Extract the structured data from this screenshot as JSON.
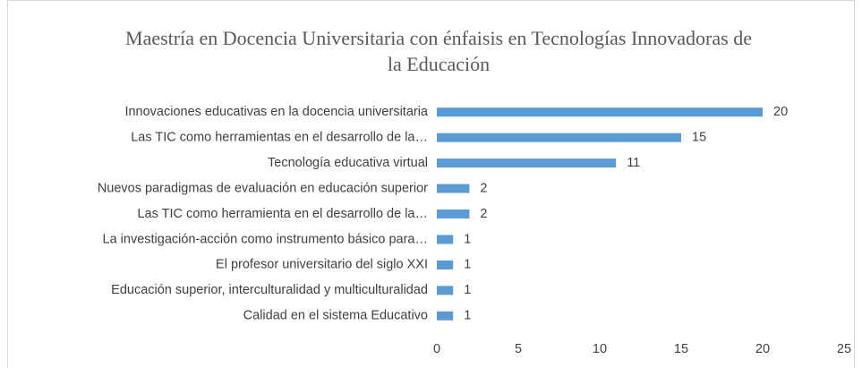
{
  "chart_data": {
    "type": "barh",
    "title": "Maestría en Docencia Universitaria con énfaisis en Tecnologías Innovadoras de la Educación",
    "categories": [
      "Innovaciones educativas en la docencia universitaria",
      "Las TIC como herramientas en el desarrollo de la…",
      "Tecnología educativa virtual",
      "Nuevos paradigmas de evaluación en educación superior",
      "Las TIC como herramienta en el desarrollo de la…",
      "La investigación-acción como instrumento básico para…",
      "El profesor universitario del siglo XXI",
      "Educación superior, interculturalidad y multiculturalidad",
      "Calidad en el sistema Educativo"
    ],
    "values": [
      20,
      15,
      11,
      2,
      2,
      1,
      1,
      1,
      1
    ],
    "color": "#5b9bd5",
    "xlim": [
      0,
      25
    ],
    "xticks": [
      0,
      5,
      10,
      15,
      20,
      25
    ],
    "grid": false
  }
}
